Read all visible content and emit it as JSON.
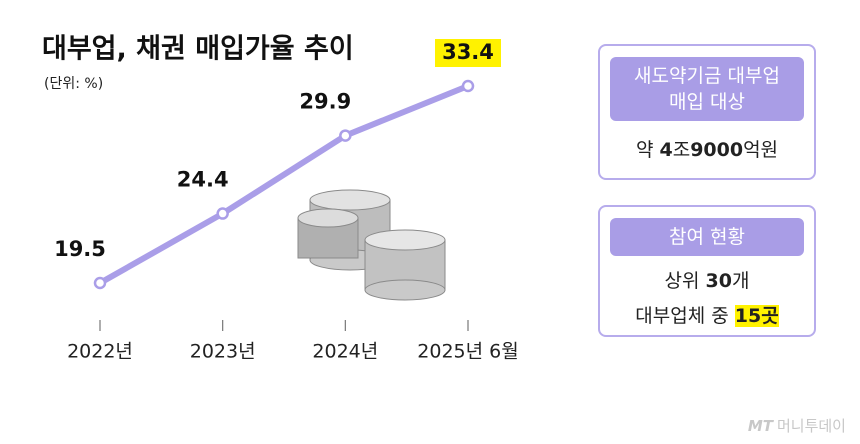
{
  "chart_data": {
    "type": "line",
    "title": "대부업, 채권 매입가율 추이",
    "subtitle": "(단위: %)",
    "categories": [
      "2022년",
      "2023년",
      "2024년",
      "2025년 6월"
    ],
    "values": [
      19.5,
      24.4,
      29.9,
      33.4
    ],
    "color": "#aa9ee8"
  },
  "panel": {
    "boxes": [
      {
        "heading": [
          "새도약기금 대부업",
          "매입 대상"
        ],
        "lines": [
          [
            "약 ",
            "4",
            "조",
            "9000",
            "억원"
          ]
        ]
      },
      {
        "heading": [
          "참여 현황"
        ],
        "lines": [
          [
            "상위 ",
            "30",
            "개"
          ],
          [
            "대부업체 중 ",
            "15곳"
          ]
        ]
      }
    ]
  },
  "source": {
    "logo": "MT",
    "name": "머니투데이"
  }
}
